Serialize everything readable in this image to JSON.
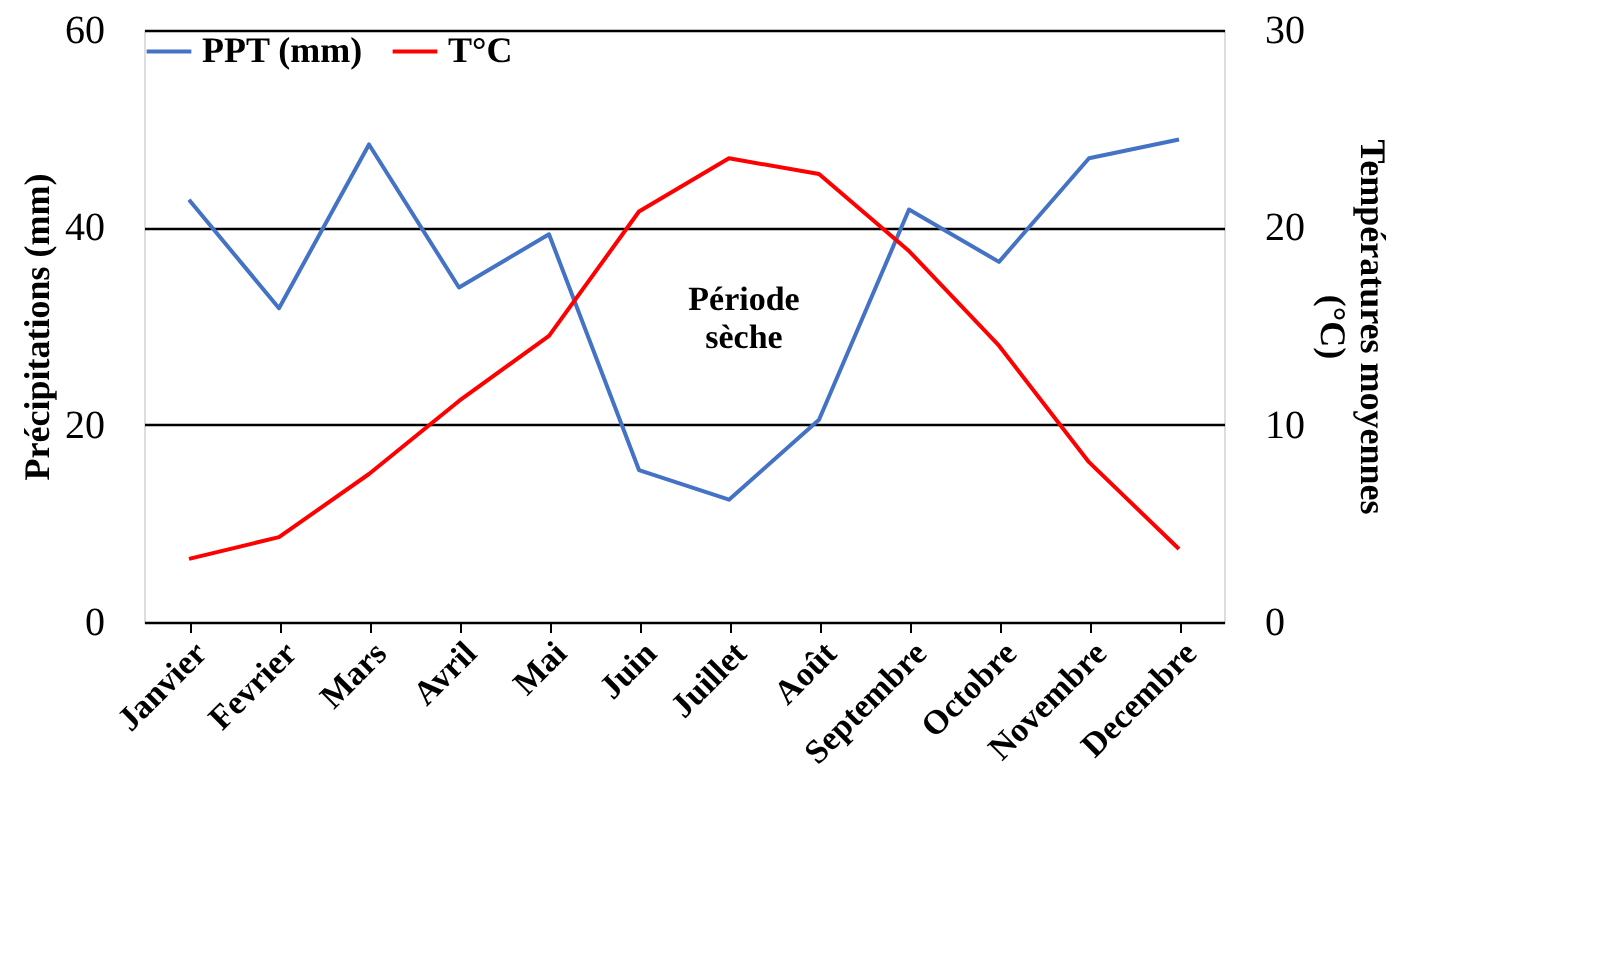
{
  "chart_data": {
    "type": "line",
    "categories": [
      "Janvier",
      "Fevrier",
      "Mars",
      "Avril",
      "Mai",
      "Juin",
      "Juillet",
      "Août",
      "Septembre",
      "Octobre",
      "Novembre",
      "Decembre"
    ],
    "series": [
      {
        "name": "PPT (mm)",
        "color": "#4472c4",
        "values": [
          42.8,
          31.8,
          48.4,
          33.9,
          39.3,
          15.4,
          12.4,
          20.5,
          41.8,
          36.5,
          47.0,
          48.9
        ]
      },
      {
        "name": "T°C",
        "color": "#ff0000",
        "axis": "y2",
        "values": [
          3.2,
          4.3,
          7.5,
          11.2,
          14.5,
          20.8,
          23.5,
          22.7,
          18.8,
          14.0,
          8.1,
          3.7
        ]
      }
    ],
    "ylabel": "Précipitations (mm)",
    "y2label": "Températures moyennes (°C)",
    "ylim": [
      0,
      60
    ],
    "yticks": [
      0,
      20,
      40,
      60
    ],
    "y2lim": [
      0,
      30
    ],
    "y2ticks": [
      0,
      10,
      20,
      30
    ],
    "annotations": [
      "Période sèche"
    ],
    "grid": "y",
    "legend": "top",
    "marker": "none",
    "line_style": "solid"
  }
}
